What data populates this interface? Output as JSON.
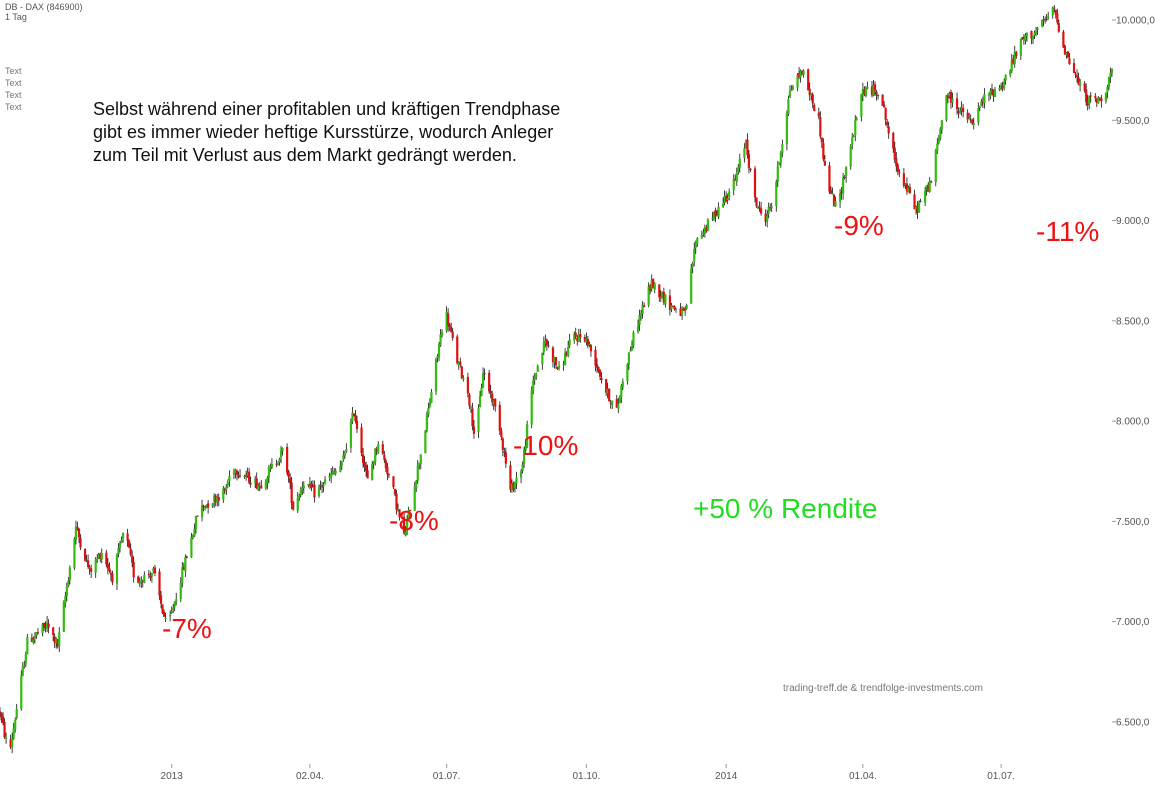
{
  "header": {
    "instrument": "DB - DAX (846900)",
    "period": "1 Tag"
  },
  "legend_items": [
    "Text",
    "Text",
    "Text",
    "Text"
  ],
  "annotation": {
    "lines": [
      "Selbst während einer profitablen und kräftigen Trendphase",
      "gibt es immer wieder heftige Kursstürze, wodurch Anleger",
      "zum Teil mit Verlust aus dem Markt gedrängt werden."
    ]
  },
  "drawdowns": [
    "-7%",
    "-8%",
    "-10%",
    "-9%",
    "-11%"
  ],
  "return_label": "+50 % Rendite",
  "credit": "trading-treff.de & trendfolge-investments.com",
  "colors": {
    "up": "#33bb11",
    "down": "#dd1111",
    "wick": "#111111",
    "drawdown": "#ee1111",
    "return": "#22dd22"
  },
  "chart_data": {
    "type": "candlestick",
    "interval": "1 Tag",
    "y_axis": {
      "position": "right",
      "range": [
        6320,
        10040
      ],
      "ticks": [
        6500,
        7000,
        7500,
        8000,
        8500,
        9000,
        9500,
        10000
      ],
      "tick_labels": [
        "6.500,0",
        "7.000,0",
        "7.500,0",
        "8.000,0",
        "8.500,0",
        "9.000,0",
        "9.500,0",
        "10.000,0"
      ]
    },
    "x_axis": {
      "range": [
        "2012-09-10",
        "2014-09-12"
      ],
      "ticks": [
        "2013-01-01",
        "2013-04-02",
        "2013-07-01",
        "2013-10-01",
        "2014-01-01",
        "2014-04-01",
        "2014-07-01"
      ],
      "tick_labels": [
        "2013",
        "02.04.",
        "01.07.",
        "01.10.",
        "2014",
        "01.04.",
        "01.07."
      ]
    },
    "grid": false,
    "close_path": [
      [
        "2012-09-10",
        6550
      ],
      [
        "2012-09-16",
        6330
      ],
      [
        "2012-09-28",
        6900
      ],
      [
        "2012-10-11",
        6980
      ],
      [
        "2012-10-18",
        6880
      ],
      [
        "2012-10-30",
        7470
      ],
      [
        "2012-11-08",
        7250
      ],
      [
        "2012-11-16",
        7350
      ],
      [
        "2012-11-23",
        7220
      ],
      [
        "2012-12-01",
        7460
      ],
      [
        "2012-12-08",
        7200
      ],
      [
        "2012-12-20",
        7250
      ],
      [
        "2012-12-29",
        6960
      ],
      [
        "2013-01-19",
        7560
      ],
      [
        "2013-02-05",
        7650
      ],
      [
        "2013-02-10",
        7770
      ],
      [
        "2013-02-28",
        7680
      ],
      [
        "2013-03-16",
        7860
      ],
      [
        "2013-03-22",
        7570
      ],
      [
        "2013-03-29",
        7700
      ],
      [
        "2013-04-05",
        7640
      ],
      [
        "2013-04-15",
        7720
      ],
      [
        "2013-04-23",
        7780
      ],
      [
        "2013-05-01",
        8050
      ],
      [
        "2013-05-10",
        7700
      ],
      [
        "2013-05-17",
        7900
      ],
      [
        "2013-05-26",
        7680
      ],
      [
        "2013-06-03",
        7420
      ],
      [
        "2013-06-16",
        7920
      ],
      [
        "2013-06-30",
        8560
      ],
      [
        "2013-07-08",
        8300
      ],
      [
        "2013-07-15",
        8150
      ],
      [
        "2013-07-20",
        7900
      ],
      [
        "2013-07-25",
        8250
      ],
      [
        "2013-08-04",
        8020
      ],
      [
        "2013-08-12",
        7650
      ],
      [
        "2013-08-20",
        7780
      ],
      [
        "2013-08-27",
        8200
      ],
      [
        "2013-09-04",
        8400
      ],
      [
        "2013-09-13",
        8250
      ],
      [
        "2013-09-22",
        8420
      ],
      [
        "2013-09-30",
        8420
      ],
      [
        "2013-10-07",
        8300
      ],
      [
        "2013-10-14",
        8150
      ],
      [
        "2013-10-21",
        8050
      ],
      [
        "2013-10-26",
        8250
      ],
      [
        "2013-11-04",
        8500
      ],
      [
        "2013-11-13",
        8690
      ],
      [
        "2013-11-25",
        8580
      ],
      [
        "2013-12-05",
        8530
      ],
      [
        "2013-12-12",
        8900
      ],
      [
        "2013-12-22",
        9000
      ],
      [
        "2013-12-30",
        9100
      ],
      [
        "2014-01-07",
        9200
      ],
      [
        "2014-01-14",
        9400
      ],
      [
        "2014-01-19",
        9120
      ],
      [
        "2014-01-26",
        9000
      ],
      [
        "2014-02-01",
        9100
      ],
      [
        "2014-02-12",
        9650
      ],
      [
        "2014-02-20",
        9750
      ],
      [
        "2014-03-03",
        9500
      ],
      [
        "2014-03-08",
        9200
      ],
      [
        "2014-03-15",
        9050
      ],
      [
        "2014-03-19",
        9200
      ],
      [
        "2014-04-01",
        9650
      ],
      [
        "2014-04-12",
        9650
      ],
      [
        "2014-04-22",
        9300
      ],
      [
        "2014-05-06",
        9050
      ],
      [
        "2014-05-16",
        9200
      ],
      [
        "2014-05-26",
        9630
      ],
      [
        "2014-06-12",
        9480
      ],
      [
        "2014-06-20",
        9610
      ],
      [
        "2014-07-02",
        9680
      ],
      [
        "2014-07-15",
        9900
      ],
      [
        "2014-07-25",
        9950
      ],
      [
        "2014-08-05",
        10050
      ],
      [
        "2014-08-12",
        9850
      ],
      [
        "2014-08-20",
        9700
      ],
      [
        "2014-08-27",
        9600
      ],
      [
        "2014-09-05",
        9600
      ],
      [
        "2014-09-12",
        9750
      ]
    ]
  }
}
